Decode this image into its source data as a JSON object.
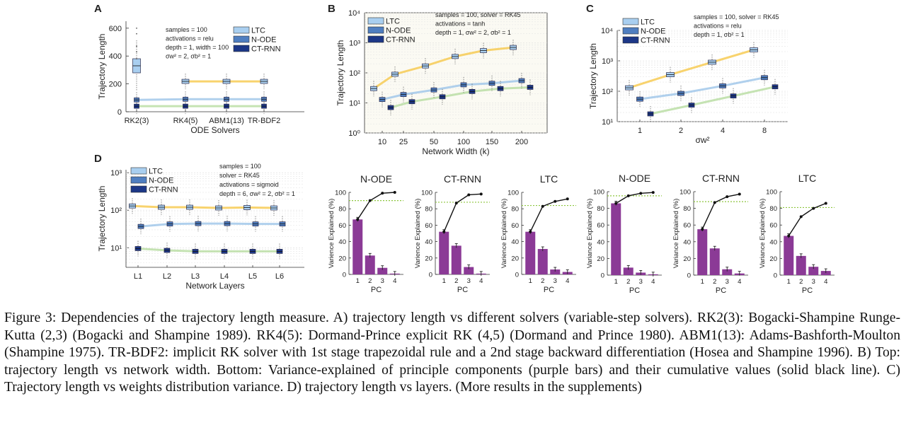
{
  "colors": {
    "ltc": "#a9cff0",
    "node": "#4f7ec0",
    "ctrnn": "#1c3787",
    "ltc_trend": "#f6c84a",
    "node_trend": "#9cc4e8",
    "ctrnn_trend": "#b6dca0",
    "bar": "#8b3a96",
    "cum_line": "#111111",
    "threshold": "#8dc63f"
  },
  "caption": "Figure 3: Dependencies of the trajectory length measure. A) trajectory length vs different solvers (variable-step solvers). RK2(3): Bogacki-Shampine Runge-Kutta (2,3) (Bogacki and Shampine 1989). RK4(5): Dormand-Prince explicit RK (4,5) (Dormand and Prince 1980). ABM1(13): Adams-Bashforth-Moulton (Shampine 1975). TR-BDF2: implicit RK solver with 1st stage trapezoidal rule and a 2nd stage backward differentiation (Hosea and Shampine 1996). B) Top: trajectory length vs network width. Bottom: Variance-explained of principle components (purple bars) and their cumulative values (solid black line). C) Trajectory length vs weights distribution variance. D) trajectory length vs layers. (More results in the supplements)",
  "chart_data": [
    {
      "panel": "A",
      "type": "box",
      "xlabel": "ODE Solvers",
      "ylabel": "Trajectory Length",
      "scale": "linear",
      "ylim": [
        0,
        650
      ],
      "yticks": [
        "0",
        "200",
        "400",
        "600"
      ],
      "categories": [
        "RK2(3)",
        "RK4(5)",
        "ABM1(13)",
        "TR-BDF2"
      ],
      "legend": [
        "LTC",
        "N-ODE",
        "CT-RNN"
      ],
      "annotation": [
        "samples = 100",
        "activations = relu",
        "depth = 1,  width = 100",
        "σw² = 2,  σb² = 1"
      ],
      "series": [
        {
          "name": "LTC",
          "values": [
            330,
            218,
            218,
            218
          ]
        },
        {
          "name": "N-ODE",
          "values": [
            85,
            90,
            90,
            90
          ]
        },
        {
          "name": "CT-RNN",
          "values": [
            40,
            40,
            40,
            40
          ]
        }
      ]
    },
    {
      "panel": "B",
      "type": "box",
      "xlabel": "Network Width (k)",
      "ylabel": "Trajectory Length",
      "scale": "log",
      "ylim": [
        1,
        10000
      ],
      "yticks": [
        "10⁰",
        "10¹",
        "10²",
        "10³",
        "10⁴"
      ],
      "categories": [
        "10",
        "25",
        "50",
        "100",
        "150",
        "200"
      ],
      "legend": [
        "LTC",
        "N-ODE",
        "CT-RNN"
      ],
      "annotation": [
        "samples = 100, solver = RK45",
        "activations = tanh",
        "depth = 1,  σw² = 2,  σb² = 1"
      ],
      "series": [
        {
          "name": "LTC",
          "values": [
            30,
            90,
            170,
            350,
            550,
            700
          ]
        },
        {
          "name": "N-ODE",
          "values": [
            13,
            19,
            27,
            40,
            45,
            55
          ]
        },
        {
          "name": "CT-RNN",
          "values": [
            7,
            11,
            16,
            24,
            30,
            33
          ]
        }
      ]
    },
    {
      "panel": "C",
      "type": "box",
      "xlabel": "σw²",
      "ylabel": "Trajectory Length",
      "scale": "log",
      "ylim": [
        10,
        10000
      ],
      "yticks": [
        "10¹",
        "10²",
        "10³",
        "10⁴"
      ],
      "categories": [
        "1",
        "2",
        "4",
        "8"
      ],
      "legend": [
        "LTC",
        "N-ODE",
        "CT-RNN"
      ],
      "annotation": [
        "samples = 100, solver = RK45",
        "activations = relu",
        "depth = 1,  σb² = 1"
      ],
      "series": [
        {
          "name": "LTC",
          "values": [
            130,
            350,
            900,
            2300
          ]
        },
        {
          "name": "N-ODE",
          "values": [
            55,
            85,
            150,
            280
          ]
        },
        {
          "name": "CT-RNN",
          "values": [
            18,
            35,
            70,
            140
          ]
        }
      ]
    },
    {
      "panel": "D",
      "type": "box",
      "xlabel": "Network Layers",
      "ylabel": "Trajectory Length",
      "scale": "log",
      "ylim": [
        3,
        1200
      ],
      "yticks": [
        "10¹",
        "10²",
        "10³"
      ],
      "categories": [
        "L1",
        "L2",
        "L3",
        "L4",
        "L5",
        "L6"
      ],
      "legend": [
        "LTC",
        "N-ODE",
        "CT-RNN"
      ],
      "annotation": [
        "samples = 100",
        "solver = RK45",
        "activations = sigmoid",
        "depth = 6,  σw² = 2,  σb² = 1"
      ],
      "series": [
        {
          "name": "LTC",
          "values": [
            130,
            120,
            120,
            115,
            118,
            115
          ]
        },
        {
          "name": "N-ODE",
          "values": [
            37,
            43,
            44,
            44,
            43,
            43
          ]
        },
        {
          "name": "CT-RNN",
          "values": [
            9.5,
            8.5,
            8,
            8,
            8,
            8
          ]
        }
      ]
    },
    {
      "panel": "B1",
      "type": "bar",
      "title": "N-ODE",
      "xlabel": "PC",
      "ylabel": "Varience Explained (%)",
      "categories": [
        "1",
        "2",
        "3",
        "4"
      ],
      "ylim": [
        0,
        100
      ],
      "yticks": [
        "0",
        "20",
        "40",
        "60",
        "80",
        "100"
      ],
      "values": [
        67,
        23,
        8,
        1
      ],
      "cumulative": [
        67,
        90,
        99,
        100
      ],
      "threshold": 90
    },
    {
      "panel": "B2",
      "type": "bar",
      "title": "CT-RNN",
      "xlabel": "PC",
      "ylabel": "Varience Explained (%)",
      "categories": [
        "1",
        "2",
        "3",
        "4"
      ],
      "ylim": [
        0,
        100
      ],
      "yticks": [
        "0",
        "20",
        "40",
        "60",
        "80",
        "100"
      ],
      "values": [
        52,
        35,
        9,
        1
      ],
      "cumulative": [
        52,
        87,
        97,
        98
      ],
      "threshold": 88
    },
    {
      "panel": "B3",
      "type": "bar",
      "title": "LTC",
      "xlabel": "PC",
      "ylabel": "Varience Explained (%)",
      "categories": [
        "1",
        "2",
        "3",
        "4"
      ],
      "ylim": [
        0,
        100
      ],
      "yticks": [
        "0",
        "20",
        "40",
        "60",
        "80",
        "100"
      ],
      "values": [
        52,
        31,
        6,
        3
      ],
      "cumulative": [
        52,
        83,
        89,
        92
      ],
      "threshold": 84
    },
    {
      "panel": "C1",
      "type": "bar",
      "title": "N-ODE",
      "xlabel": "PC",
      "ylabel": "Variance Explained (%)",
      "categories": [
        "1",
        "2",
        "3",
        "4"
      ],
      "ylim": [
        0,
        100
      ],
      "yticks": [
        "0",
        "20",
        "40",
        "60",
        "80",
        "100"
      ],
      "values": [
        86,
        9,
        3,
        1
      ],
      "cumulative": [
        86,
        95,
        98,
        99
      ],
      "threshold": 95
    },
    {
      "panel": "C2",
      "type": "bar",
      "title": "CT-RNN",
      "xlabel": "PC",
      "ylabel": "Variance Explained (%)",
      "categories": [
        "1",
        "2",
        "3",
        "4"
      ],
      "ylim": [
        0,
        100
      ],
      "yticks": [
        "0",
        "20",
        "40",
        "60",
        "80",
        "100"
      ],
      "values": [
        55,
        32,
        7,
        2
      ],
      "cumulative": [
        55,
        87,
        94,
        97
      ],
      "threshold": 88
    },
    {
      "panel": "C3",
      "type": "bar",
      "title": "LTC",
      "xlabel": "PC",
      "ylabel": "Variance Explained (%)",
      "categories": [
        "1",
        "2",
        "3",
        "4"
      ],
      "ylim": [
        0,
        100
      ],
      "yticks": [
        "0",
        "20",
        "40",
        "60",
        "80",
        "100"
      ],
      "values": [
        47,
        23,
        10,
        5
      ],
      "cumulative": [
        47,
        70,
        80,
        86
      ],
      "threshold": 81
    }
  ]
}
